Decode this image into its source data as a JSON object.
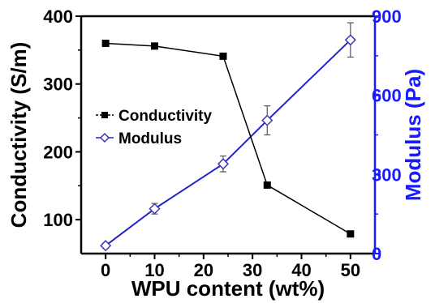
{
  "chart_data": {
    "type": "line",
    "xlabel": "WPU content (wt%)",
    "ylabel_left": "Conductivity (S/m)",
    "ylabel_right": "Modulus (Pa)",
    "xlim": [
      -5,
      55
    ],
    "ylim_left": [
      50,
      400
    ],
    "ylim_right": [
      0,
      900
    ],
    "x_ticks": [
      0,
      10,
      20,
      30,
      40,
      50
    ],
    "y_left_ticks": [
      100,
      200,
      300,
      400
    ],
    "y_right_ticks": [
      0,
      300,
      600,
      900
    ],
    "legend_position": "left-middle",
    "colors": {
      "conductivity": "#000000",
      "modulus": "#2323cc",
      "right_axis": "#1a1aff"
    },
    "series": [
      {
        "name": "Conductivity",
        "axis": "left",
        "marker": "square",
        "x": [
          0,
          10,
          24,
          33,
          50
        ],
        "y": [
          360,
          356,
          341,
          151,
          79
        ]
      },
      {
        "name": "Modulus",
        "axis": "right",
        "marker": "diamond-open",
        "x": [
          0,
          10,
          24,
          33,
          50
        ],
        "y": [
          30,
          170,
          340,
          505,
          810
        ],
        "error": [
          10,
          20,
          30,
          55,
          65
        ]
      }
    ]
  }
}
